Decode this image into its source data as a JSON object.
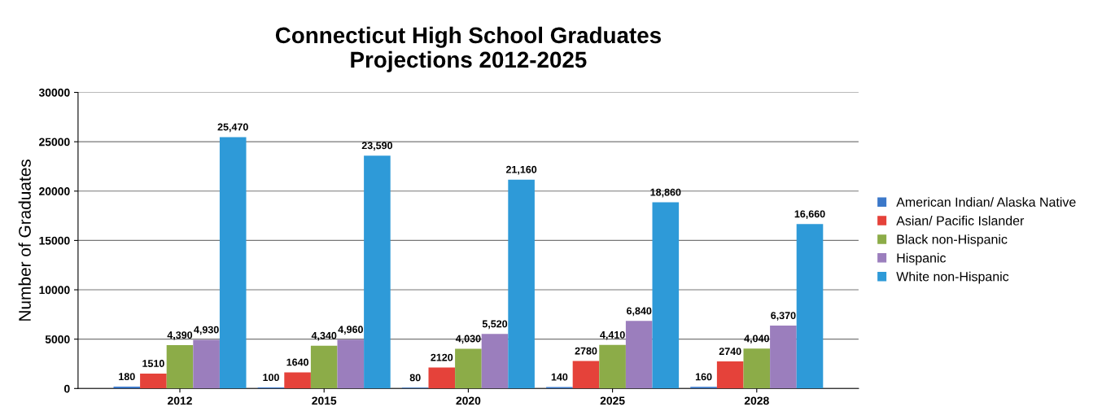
{
  "chart_data": {
    "type": "bar",
    "title": "Connecticut High School Graduates\nProjections 2012-2025",
    "ylabel": "Number of Graduates",
    "categories": [
      "2012",
      "2015",
      "2020",
      "2025",
      "2028"
    ],
    "series": [
      {
        "name": "American Indian/ Alaska Native",
        "color": "#3b78c9",
        "values": [
          180,
          100,
          80,
          140,
          160
        ],
        "value_labels": [
          "180",
          "100",
          "80",
          "140",
          "160"
        ]
      },
      {
        "name": "Asian/ Pacific Islander",
        "color": "#e5423a",
        "values": [
          1510,
          1640,
          2120,
          2780,
          2740
        ],
        "value_labels": [
          "1510",
          "1640",
          "2120",
          "2780",
          "2740"
        ]
      },
      {
        "name": "Black non-Hispanic",
        "color": "#8cac48",
        "values": [
          4390,
          4340,
          4030,
          4410,
          4040
        ],
        "value_labels": [
          "4,390",
          "4,340",
          "4,030",
          "4,410",
          "4,040"
        ]
      },
      {
        "name": "Hispanic",
        "color": "#9b7ebd",
        "values": [
          4930,
          4960,
          5520,
          6840,
          6370
        ],
        "value_labels": [
          "4,930",
          "4,960",
          "5,520",
          "6,840",
          "6,370"
        ]
      },
      {
        "name": "White non-Hispanic",
        "color": "#2e9ad8",
        "values": [
          25470,
          23590,
          21160,
          18860,
          16660
        ],
        "value_labels": [
          "25,470",
          "23,590",
          "21,160",
          "18,860",
          "16,660"
        ]
      }
    ],
    "ylim": [
      0,
      30000
    ],
    "yticks": [
      0,
      5000,
      10000,
      15000,
      20000,
      25000,
      30000
    ],
    "grid": "y",
    "legend": "right"
  }
}
